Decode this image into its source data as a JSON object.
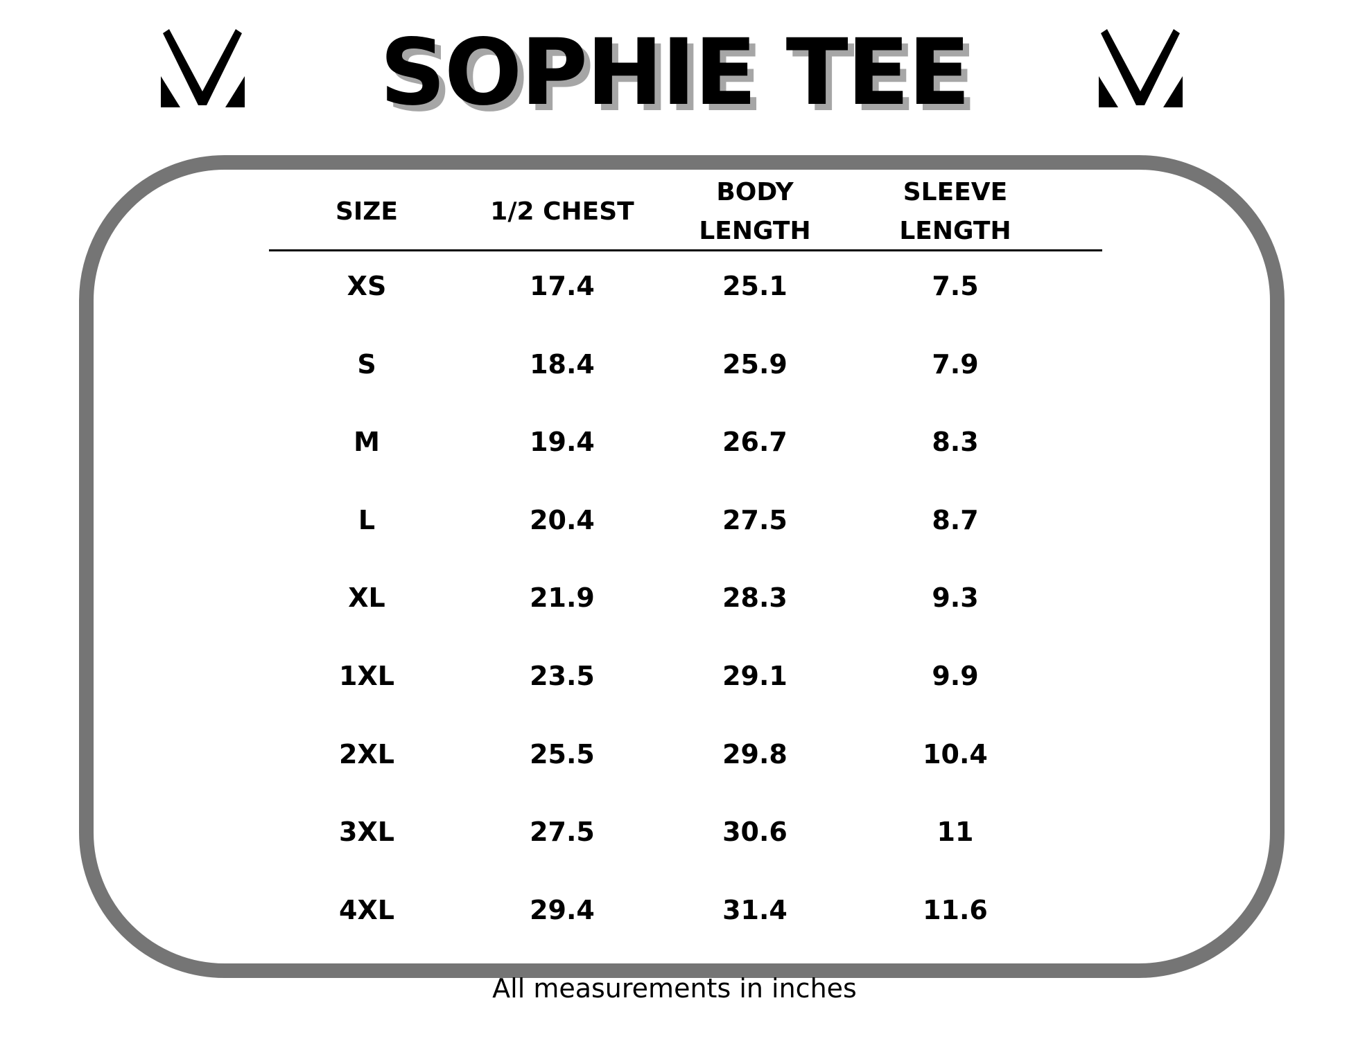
{
  "title": "SOPHIE TEE",
  "logo": {
    "icon": "mv-monogram-logo"
  },
  "colors": {
    "frame": "#757575",
    "title_shadow": "#a6a6a6"
  },
  "table": {
    "headers": [
      [
        "SIZE"
      ],
      [
        "1/2 CHEST"
      ],
      [
        "BODY",
        "LENGTH"
      ],
      [
        "SLEEVE",
        "LENGTH"
      ]
    ],
    "rows": [
      [
        "XS",
        "17.4",
        "25.1",
        "7.5"
      ],
      [
        "S",
        "18.4",
        "25.9",
        "7.9"
      ],
      [
        "M",
        "19.4",
        "26.7",
        "8.3"
      ],
      [
        "L",
        "20.4",
        "27.5",
        "8.7"
      ],
      [
        "XL",
        "21.9",
        "28.3",
        "9.3"
      ],
      [
        "1XL",
        "23.5",
        "29.1",
        "9.9"
      ],
      [
        "2XL",
        "25.5",
        "29.8",
        "10.4"
      ],
      [
        "3XL",
        "27.5",
        "30.6",
        "11"
      ],
      [
        "4XL",
        "29.4",
        "31.4",
        "11.6"
      ]
    ]
  },
  "footer": "All measurements in inches"
}
